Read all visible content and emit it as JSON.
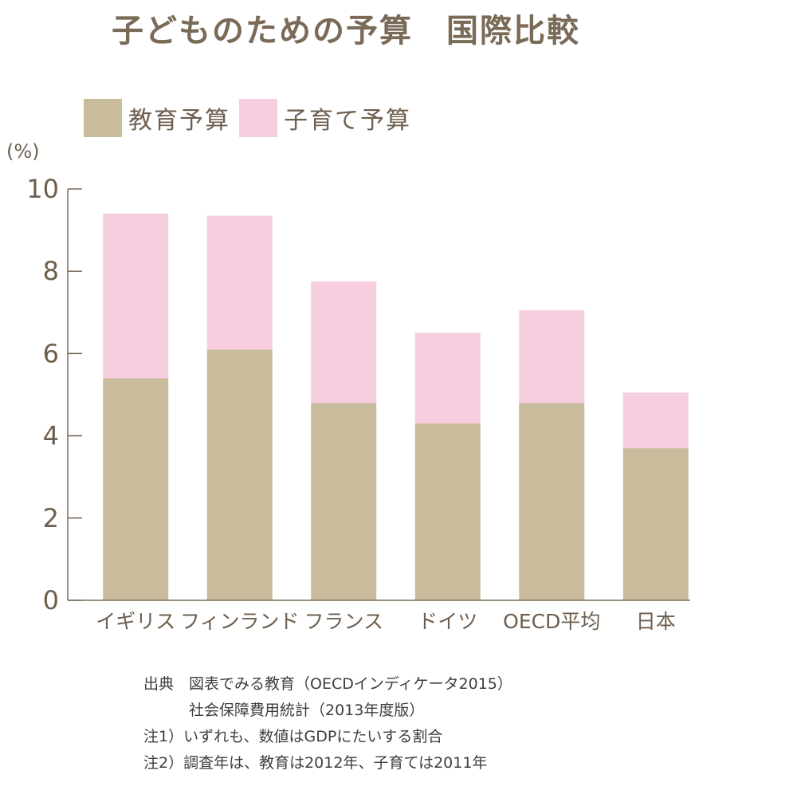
{
  "chart_data": {
    "type": "bar",
    "stacked": true,
    "title": "子どものための予算　国際比較",
    "ylabel": "(%)",
    "ylim": [
      0,
      10
    ],
    "yticks": [
      0,
      2,
      4,
      6,
      8,
      10
    ],
    "grid": false,
    "legend_position": "top-left",
    "categories": [
      "イギリス",
      "フィンランド",
      "フランス",
      "ドイツ",
      "OECD平均",
      "日本"
    ],
    "series": [
      {
        "name": "教育予算",
        "color": "#c9bc9c",
        "values": [
          5.4,
          6.1,
          4.8,
          4.3,
          4.8,
          3.7
        ]
      },
      {
        "name": "子育て予算",
        "color": "#f7cde0",
        "values": [
          4.0,
          3.25,
          2.95,
          2.2,
          2.25,
          1.35
        ]
      }
    ]
  },
  "notes": [
    "出典　図表でみる教育（OECDインディケータ2015）",
    "　　　社会保障費用統計（2013年度版）",
    "注1）いずれも、数値はGDPにたいする割合",
    "注2）調査年は、教育は2012年、子育ては2011年"
  ]
}
